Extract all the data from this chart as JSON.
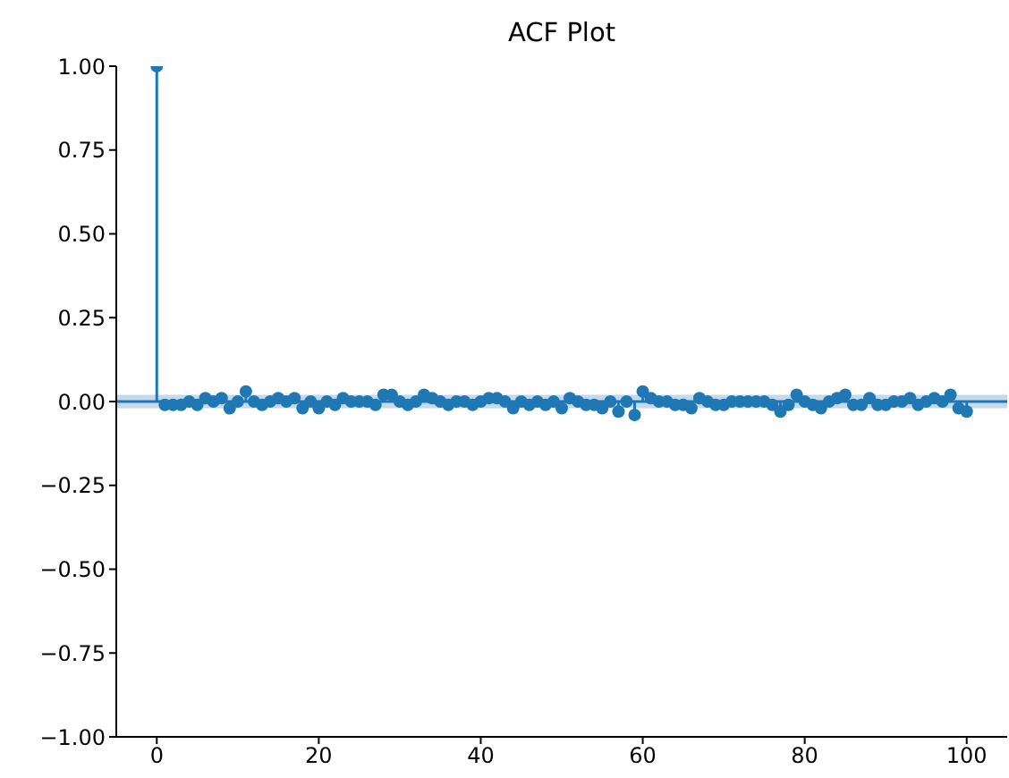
{
  "chart_data": {
    "type": "lollipop",
    "title": "ACF Plot",
    "x": [
      0,
      1,
      2,
      3,
      4,
      5,
      6,
      7,
      8,
      9,
      10,
      11,
      12,
      13,
      14,
      15,
      16,
      17,
      18,
      19,
      20,
      21,
      22,
      23,
      24,
      25,
      26,
      27,
      28,
      29,
      30,
      31,
      32,
      33,
      34,
      35,
      36,
      37,
      38,
      39,
      40,
      41,
      42,
      43,
      44,
      45,
      46,
      47,
      48,
      49,
      50,
      51,
      52,
      53,
      54,
      55,
      56,
      57,
      58,
      59,
      60,
      61,
      62,
      63,
      64,
      65,
      66,
      67,
      68,
      69,
      70,
      71,
      72,
      73,
      74,
      75,
      76,
      77,
      78,
      79,
      80,
      81,
      82,
      83,
      84,
      85,
      86,
      87,
      88,
      89,
      90,
      91,
      92,
      93,
      94,
      95,
      96,
      97,
      98,
      99,
      100
    ],
    "values": [
      1.0,
      -0.01,
      -0.01,
      -0.01,
      0.0,
      -0.01,
      0.01,
      0.0,
      0.01,
      -0.02,
      0.0,
      0.03,
      0.0,
      -0.01,
      0.0,
      0.01,
      0.0,
      0.01,
      -0.02,
      0.0,
      -0.02,
      0.0,
      -0.01,
      0.01,
      0.0,
      0.0,
      0.0,
      -0.01,
      0.02,
      0.02,
      0.0,
      -0.01,
      0.0,
      0.02,
      0.01,
      0.0,
      -0.01,
      0.0,
      0.0,
      -0.01,
      0.0,
      0.01,
      0.01,
      0.0,
      -0.02,
      0.0,
      -0.01,
      0.0,
      -0.01,
      0.0,
      -0.02,
      0.01,
      0.0,
      -0.01,
      -0.01,
      -0.02,
      0.0,
      -0.03,
      0.0,
      -0.04,
      0.03,
      0.01,
      0.0,
      0.0,
      -0.01,
      -0.01,
      -0.02,
      0.01,
      0.0,
      -0.01,
      -0.01,
      0.0,
      0.0,
      0.0,
      0.0,
      0.0,
      -0.01,
      -0.03,
      -0.01,
      0.02,
      0.0,
      -0.01,
      -0.02,
      0.0,
      0.01,
      0.02,
      -0.01,
      -0.01,
      0.01,
      -0.01,
      -0.01,
      0.0,
      0.0,
      0.01,
      -0.01,
      0.0,
      0.01,
      0.0,
      0.02,
      -0.02,
      -0.03
    ],
    "color": "#1f77b4",
    "marker": "circle",
    "xlim": [
      -5,
      105
    ],
    "xticks": [
      0,
      20,
      40,
      60,
      80,
      100
    ],
    "ylim": [
      -1,
      1
    ],
    "yticks": [
      {
        "value": 1,
        "label": "1.00"
      },
      {
        "value": 0.75,
        "label": "0.75"
      },
      {
        "value": 0.5,
        "label": "0.50"
      },
      {
        "value": 0.25,
        "label": "0.25"
      },
      {
        "value": 0,
        "label": "0.00"
      },
      {
        "value": -0.25,
        "label": "−0.25"
      },
      {
        "value": -0.5,
        "label": "−0.50"
      },
      {
        "value": -0.75,
        "label": "−0.75"
      },
      {
        "value": -1,
        "label": "−1.00"
      }
    ],
    "ref_lines": [
      {
        "axis": "y",
        "value": 0,
        "color": "#1f77b4"
      }
    ],
    "bands": [
      {
        "axis": "y",
        "from": -0.02,
        "to": 0.02,
        "color": "#c6d9ec"
      }
    ]
  }
}
